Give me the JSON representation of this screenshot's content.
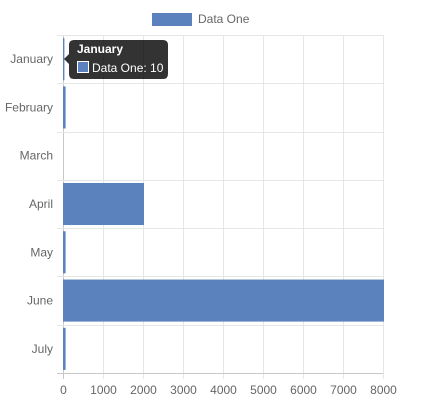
{
  "chart_data": {
    "type": "bar",
    "orientation": "horizontal",
    "categories": [
      "January",
      "February",
      "March",
      "April",
      "May",
      "June",
      "July"
    ],
    "series": [
      {
        "name": "Data One",
        "values": [
          10,
          40,
          0,
          2000,
          40,
          8000,
          40
        ],
        "color": "#5b82bd"
      }
    ],
    "xlim": [
      0,
      8000
    ],
    "x_ticks": [
      0,
      1000,
      2000,
      3000,
      4000,
      5000,
      6000,
      7000,
      8000
    ],
    "grid": true,
    "legend_position": "top",
    "tooltip": {
      "title": "January",
      "label": "Data One: 10"
    }
  }
}
